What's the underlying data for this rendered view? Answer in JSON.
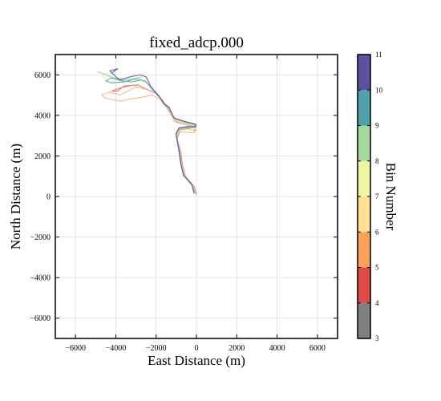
{
  "chart_data": {
    "type": "line",
    "title": "fixed_adcp.000",
    "xlabel": "East Distance (m)",
    "ylabel": "North Distance (m)",
    "xlim": [
      -7000,
      7000
    ],
    "ylim": [
      -7000,
      7000
    ],
    "xticks": [
      -6000,
      -4000,
      -2000,
      0,
      2000,
      4000,
      6000
    ],
    "yticks": [
      -6000,
      -4000,
      -2000,
      0,
      2000,
      4000,
      6000
    ],
    "grid": true,
    "colorbar": {
      "label": "Bin Number",
      "ticks": [
        3,
        4,
        5,
        6,
        7,
        8,
        9,
        10,
        11
      ],
      "bins": [
        {
          "from": 3,
          "to": 4,
          "color": "#808080"
        },
        {
          "from": 4,
          "to": 5,
          "color": "#e04a45"
        },
        {
          "from": 5,
          "to": 6,
          "color": "#fca05a"
        },
        {
          "from": 6,
          "to": 7,
          "color": "#fee191"
        },
        {
          "from": 7,
          "to": 8,
          "color": "#eef6a1"
        },
        {
          "from": 8,
          "to": 9,
          "color": "#a4d99e"
        },
        {
          "from": 9,
          "to": 10,
          "color": "#4da0ac"
        },
        {
          "from": 10,
          "to": 11,
          "color": "#5e4fa2"
        }
      ]
    },
    "series": [
      {
        "color": "#e04a45",
        "alpha": 0.7,
        "points": [
          [
            0,
            100
          ],
          [
            -100,
            450
          ],
          [
            -300,
            700
          ],
          [
            -550,
            1000
          ],
          [
            -680,
            1500
          ],
          [
            -780,
            2200
          ],
          [
            -960,
            2850
          ],
          [
            -820,
            3300
          ],
          [
            -400,
            3350
          ],
          [
            -50,
            3250
          ],
          [
            -50,
            3450
          ],
          [
            -600,
            3600
          ],
          [
            -1000,
            3700
          ],
          [
            -1300,
            4200
          ],
          [
            -1500,
            4400
          ],
          [
            -1650,
            4700
          ],
          [
            -2050,
            5100
          ],
          [
            -2500,
            5300
          ],
          [
            -2900,
            5500
          ],
          [
            -3600,
            5450
          ],
          [
            -3900,
            5200
          ],
          [
            -4200,
            5200
          ],
          [
            -3800,
            5350
          ],
          [
            -3100,
            5500
          ]
        ]
      },
      {
        "color": "#fca05a",
        "alpha": 0.7,
        "points": [
          [
            -30,
            90
          ],
          [
            -130,
            460
          ],
          [
            -320,
            700
          ],
          [
            -570,
            1000
          ],
          [
            -700,
            1500
          ],
          [
            -800,
            2200
          ],
          [
            -980,
            2900
          ],
          [
            -800,
            3200
          ],
          [
            -350,
            3150
          ],
          [
            -100,
            3150
          ],
          [
            -70,
            3400
          ],
          [
            -650,
            3550
          ],
          [
            -1100,
            3700
          ],
          [
            -1350,
            4200
          ],
          [
            -1600,
            4500
          ],
          [
            -1800,
            4800
          ],
          [
            -2200,
            5000
          ],
          [
            -2700,
            4900
          ],
          [
            -3300,
            4800
          ],
          [
            -3800,
            4700
          ],
          [
            -4500,
            4850
          ],
          [
            -4700,
            5000
          ],
          [
            -4300,
            5150
          ],
          [
            -3800,
            5000
          ],
          [
            -3400,
            5200
          ],
          [
            -3000,
            5400
          ],
          [
            -2500,
            5300
          ]
        ]
      },
      {
        "color": "#eef6a1",
        "alpha": 0.7,
        "points": [
          [
            -60,
            120
          ],
          [
            -150,
            480
          ],
          [
            -340,
            720
          ],
          [
            -580,
            1000
          ],
          [
            -720,
            1500
          ],
          [
            -820,
            2200
          ],
          [
            -990,
            2950
          ],
          [
            -850,
            3250
          ],
          [
            -400,
            3300
          ],
          [
            -60,
            3300
          ],
          [
            -60,
            3450
          ],
          [
            -600,
            3600
          ],
          [
            -1050,
            3750
          ],
          [
            -1300,
            4250
          ],
          [
            -1550,
            4450
          ],
          [
            -1750,
            4800
          ],
          [
            -2100,
            5200
          ],
          [
            -2450,
            5600
          ],
          [
            -2900,
            5700
          ],
          [
            -3300,
            5650
          ],
          [
            -3900,
            5600
          ],
          [
            -4400,
            5700
          ],
          [
            -4700,
            6000
          ],
          [
            -4300,
            6100
          ],
          [
            -3800,
            5800
          ],
          [
            -3300,
            5700
          ]
        ]
      },
      {
        "color": "#a4d99e",
        "alpha": 0.8,
        "points": [
          [
            -90,
            140
          ],
          [
            -170,
            500
          ],
          [
            -360,
            740
          ],
          [
            -600,
            1000
          ],
          [
            -740,
            1550
          ],
          [
            -840,
            2250
          ],
          [
            -1000,
            3000
          ],
          [
            -850,
            3300
          ],
          [
            -400,
            3380
          ],
          [
            -80,
            3380
          ],
          [
            -80,
            3500
          ],
          [
            -620,
            3650
          ],
          [
            -1080,
            3800
          ],
          [
            -1320,
            4300
          ],
          [
            -1580,
            4500
          ],
          [
            -1800,
            4850
          ],
          [
            -2150,
            5250
          ],
          [
            -2500,
            5650
          ],
          [
            -2900,
            5800
          ],
          [
            -3500,
            5750
          ],
          [
            -4100,
            5850
          ],
          [
            -4700,
            6100
          ],
          [
            -4900,
            6150
          ],
          [
            -4500,
            6000
          ],
          [
            -4100,
            5800
          ],
          [
            -3700,
            5750
          ],
          [
            -3200,
            5800
          ],
          [
            -2700,
            5900
          ]
        ]
      },
      {
        "color": "#4da0ac",
        "alpha": 0.8,
        "points": [
          [
            -110,
            160
          ],
          [
            -190,
            520
          ],
          [
            -380,
            760
          ],
          [
            -620,
            1020
          ],
          [
            -760,
            1580
          ],
          [
            -860,
            2280
          ],
          [
            -1010,
            3050
          ],
          [
            -860,
            3350
          ],
          [
            -420,
            3420
          ],
          [
            -50,
            3430
          ],
          [
            -60,
            3550
          ],
          [
            -640,
            3700
          ],
          [
            -1100,
            3850
          ],
          [
            -1340,
            4350
          ],
          [
            -1600,
            4550
          ],
          [
            -1830,
            4900
          ],
          [
            -2200,
            5300
          ],
          [
            -2550,
            5700
          ],
          [
            -3000,
            5800
          ],
          [
            -3600,
            5650
          ],
          [
            -4200,
            5600
          ],
          [
            -4500,
            5700
          ],
          [
            -4200,
            5850
          ],
          [
            -3700,
            5700
          ],
          [
            -3200,
            5650
          ],
          [
            -2750,
            5750
          ]
        ]
      },
      {
        "color": "#5e4fa2",
        "alpha": 0.85,
        "points": [
          [
            -130,
            180
          ],
          [
            -210,
            540
          ],
          [
            -400,
            780
          ],
          [
            -640,
            1040
          ],
          [
            -780,
            1600
          ],
          [
            -880,
            2300
          ],
          [
            -1020,
            3100
          ],
          [
            -870,
            3380
          ],
          [
            -430,
            3450
          ],
          [
            -30,
            3450
          ],
          [
            -30,
            3560
          ],
          [
            -650,
            3720
          ],
          [
            -1120,
            3880
          ],
          [
            -1360,
            4400
          ],
          [
            -1620,
            4600
          ],
          [
            -1850,
            4950
          ],
          [
            -2250,
            5400
          ],
          [
            -2500,
            5900
          ],
          [
            -2800,
            6000
          ],
          [
            -3300,
            5900
          ],
          [
            -3800,
            5750
          ],
          [
            -4000,
            5900
          ],
          [
            -4300,
            6200
          ],
          [
            -3900,
            6300
          ],
          [
            -4200,
            6100
          ]
        ]
      }
    ]
  }
}
